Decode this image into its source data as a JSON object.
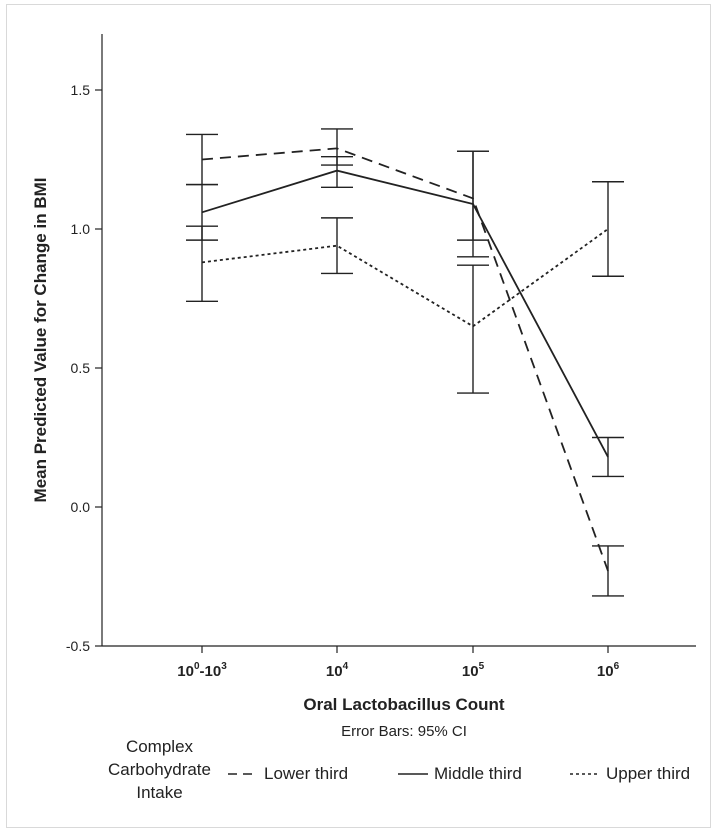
{
  "chart_data": {
    "type": "line",
    "categories": [
      "10^0-10^3",
      "10^4",
      "10^5",
      "10^6"
    ],
    "category_labels": [
      {
        "base": "10",
        "exp": "0",
        "suffix": "-10",
        "exp2": "3"
      },
      {
        "base": "10",
        "exp": "4"
      },
      {
        "base": "10",
        "exp": "5"
      },
      {
        "base": "10",
        "exp": "6"
      }
    ],
    "xlabel": "Oral Lactobacillus Count",
    "subtitle": "Error Bars: 95% CI",
    "ylabel": "Mean Predicted Value for Change in BMI",
    "ylim": [
      -0.5,
      1.7
    ],
    "yticks": [
      "-0.5",
      "0.0",
      "0.5",
      "1.0",
      "1.5"
    ],
    "grid": false,
    "legend_position": "bottom",
    "series": [
      {
        "name": "Lower third",
        "style": "dashed",
        "values": [
          1.25,
          1.29,
          1.11,
          -0.23
        ],
        "ci_low": [
          1.16,
          1.23,
          0.96,
          -0.32
        ],
        "ci_high": [
          1.34,
          1.36,
          1.28,
          -0.14
        ]
      },
      {
        "name": "Middle third",
        "style": "solid",
        "values": [
          1.06,
          1.21,
          1.09,
          0.18
        ],
        "ci_low": [
          0.96,
          1.15,
          0.9,
          0.11
        ],
        "ci_high": [
          1.16,
          1.26,
          1.28,
          0.25
        ]
      },
      {
        "name": "Upper third",
        "style": "dotted",
        "values": [
          0.88,
          0.94,
          0.65,
          1.0
        ],
        "ci_low": [
          0.74,
          0.84,
          0.41,
          0.83
        ],
        "ci_high": [
          1.01,
          1.04,
          0.87,
          1.17
        ]
      }
    ]
  },
  "legend": {
    "title_lines": [
      "Complex",
      "Carbohydrate",
      "Intake"
    ],
    "items": [
      "Lower third",
      "Middle third",
      "Upper third"
    ]
  },
  "colors": {
    "line": "#222222",
    "axis": "#222222",
    "background": "#ffffff"
  }
}
